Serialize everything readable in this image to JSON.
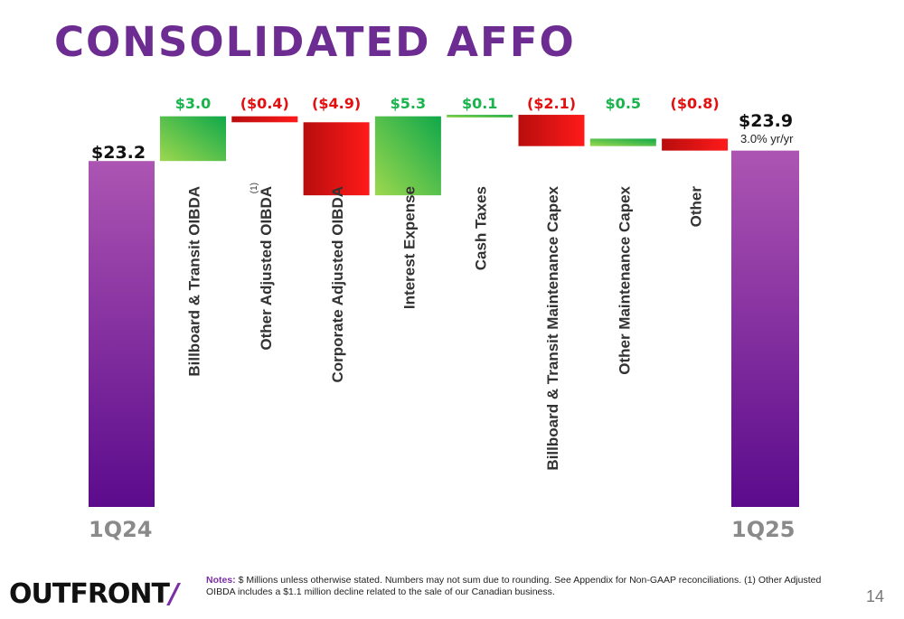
{
  "title": "CONSOLIDATED AFFO",
  "colors": {
    "title": "#6d2c91",
    "positive": "#19b44b",
    "negative": "#e3100f",
    "endpoint": "#6a1b9a",
    "period_label": "#8a8a8a"
  },
  "chart_data": {
    "type": "bar",
    "subtype": "waterfall",
    "start": {
      "label": "1Q24",
      "value": 23.2,
      "value_label": "$23.2"
    },
    "end": {
      "label": "1Q25",
      "value": 23.9,
      "value_label": "$23.9",
      "note": "3.0% yr/yr"
    },
    "categories": [
      "Billboard & Transit OIBDA",
      "Other Adjusted OIBDA",
      "Corporate Adjusted OIBDA",
      "Interest Expense",
      "Cash Taxes",
      "Billboard & Transit Maintenance Capex",
      "Other Maintenance Capex",
      "Other"
    ],
    "category_superscripts": [
      "",
      "(1)",
      "",
      "",
      "",
      "",
      "",
      ""
    ],
    "values": [
      3.0,
      -0.4,
      -4.9,
      5.3,
      0.1,
      -2.1,
      0.5,
      -0.8
    ],
    "value_labels": [
      "$3.0",
      "($0.4)",
      "($4.9)",
      "$5.3",
      "$0.1",
      "($2.1)",
      "$0.5",
      "($0.8)"
    ]
  },
  "footer": {
    "logo_text": "OUTFRONT",
    "logo_slash": "/",
    "notes_label": "Notes:",
    "notes_text": " $ Millions unless otherwise stated. Numbers may not sum due to rounding. See Appendix for Non-GAAP reconciliations. (1) Other Adjusted OIBDA includes a $1.1 million decline related to the sale of our Canadian business.",
    "page_number": "14"
  }
}
